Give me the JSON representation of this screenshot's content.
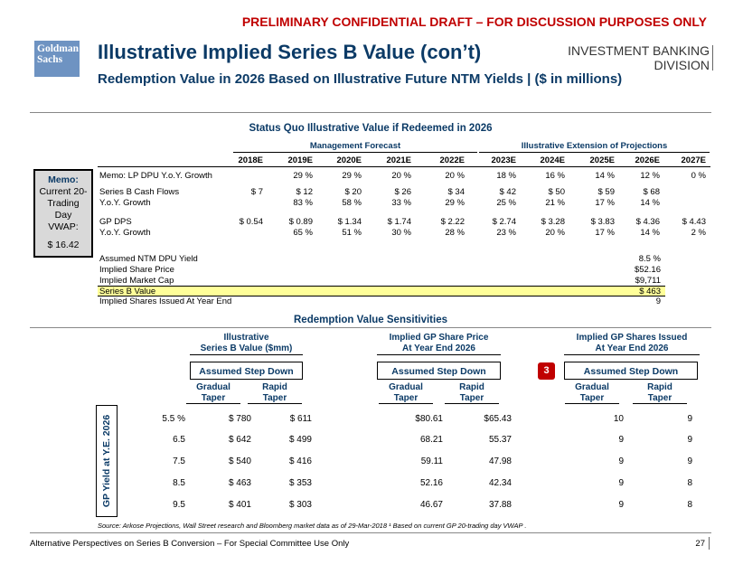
{
  "banner": "PRELIMINARY CONFIDENTIAL DRAFT – FOR DISCUSSION PURPOSES ONLY",
  "logo": {
    "line1": "Goldman",
    "line2": "Sachs"
  },
  "title": "Illustrative Implied Series B Value (con’t)",
  "subtitle": "Redemption Value in 2026 Based on Illustrative Future NTM Yields | ($ in millions)",
  "division": {
    "line1": "INVESTMENT BANKING",
    "line2": "DIVISION"
  },
  "status_quo": {
    "title": "Status Quo Illustrative Value if Redeemed in 2026",
    "group_mgmt": "Management Forecast",
    "group_ext": "Illustrative Extension of Projections",
    "years": [
      "2018E",
      "2019E",
      "2020E",
      "2021E",
      "2022E",
      "2023E",
      "2024E",
      "2025E",
      "2026E",
      "2027E"
    ],
    "rows": [
      {
        "label": "Memo: LP DPU Y.o.Y. Growth",
        "values": [
          "",
          "29 %",
          "29 %",
          "20 %",
          "20 %",
          "18 %",
          "16 %",
          "14 %",
          "12 %",
          "0 %"
        ]
      },
      {
        "label": "Series B Cash Flows",
        "values": [
          "$ 7",
          "$ 12",
          "$ 20",
          "$ 26",
          "$ 34",
          "$ 42",
          "$ 50",
          "$ 59",
          "$ 68",
          ""
        ]
      },
      {
        "label": "Y.o.Y. Growth",
        "values": [
          "",
          "83 %",
          "58 %",
          "33 %",
          "29 %",
          "25 %",
          "21 %",
          "17 %",
          "14 %",
          ""
        ]
      },
      {
        "label": "GP DPS",
        "values": [
          "$ 0.54",
          "$ 0.89",
          "$ 1.34",
          "$ 1.74",
          "$ 2.22",
          "$ 2.74",
          "$ 3.28",
          "$ 3.83",
          "$ 4.36",
          "$ 4.43"
        ]
      },
      {
        "label": "Y.o.Y. Growth",
        "values": [
          "",
          "65 %",
          "51 %",
          "30 %",
          "28 %",
          "23 %",
          "20 %",
          "17 %",
          "14 %",
          "2 %"
        ]
      }
    ],
    "summary": [
      {
        "label": "Assumed NTM DPU Yield",
        "value": "8.5 %"
      },
      {
        "label": "Implied Share Price",
        "value": "$52.16"
      },
      {
        "label": "Implied Market Cap",
        "value": "$9,711"
      },
      {
        "label": "Series B Value",
        "value": "$ 463"
      },
      {
        "label": "Implied Shares Issued At Year End",
        "value": "9"
      }
    ]
  },
  "memo": {
    "title": "Memo:",
    "line1": "Current 20-",
    "line2": "Trading",
    "line3": "Day",
    "line4": "VWAP:",
    "value": "$ 16.42"
  },
  "sensitivities": {
    "title": "Redemption Value Sensitivities",
    "groups": [
      {
        "h1": "Illustrative",
        "h2": "Series B Value ($mm)"
      },
      {
        "h1": "Implied GP Share Price",
        "h2": "At Year End 2026"
      },
      {
        "h1": "Implied GP Shares Issued",
        "h2": "At Year End 2026"
      }
    ],
    "step_down": "Assumed Step Down",
    "badge": "3",
    "col_a1": "Gradual",
    "col_a2": "Taper",
    "col_b1": "Rapid",
    "col_b2": "Taper",
    "axis_label": "GP Yield at Y.E. 2026",
    "rows": [
      {
        "yield": "5.5 %",
        "v": [
          "$ 780",
          "$ 611",
          "$80.61",
          "$65.43",
          "10",
          "9"
        ]
      },
      {
        "yield": "6.5",
        "v": [
          "$ 642",
          "$ 499",
          "68.21",
          "55.37",
          "9",
          "9"
        ]
      },
      {
        "yield": "7.5",
        "v": [
          "$ 540",
          "$ 416",
          "59.11",
          "47.98",
          "9",
          "9"
        ]
      },
      {
        "yield": "8.5",
        "v": [
          "$ 463",
          "$ 353",
          "52.16",
          "42.34",
          "9",
          "8"
        ]
      },
      {
        "yield": "9.5",
        "v": [
          "$ 401",
          "$ 303",
          "46.67",
          "37.88",
          "9",
          "8"
        ]
      }
    ]
  },
  "source": "Source: Arkose Projections, Wall Street research and Bloomberg market data as of 29-Mar-2018 ¹ Based on current GP 20-trading day VWAP .",
  "footer": {
    "left": "Alternative Perspectives on Series B Conversion – For Special Committee Use Only",
    "page": "27"
  }
}
